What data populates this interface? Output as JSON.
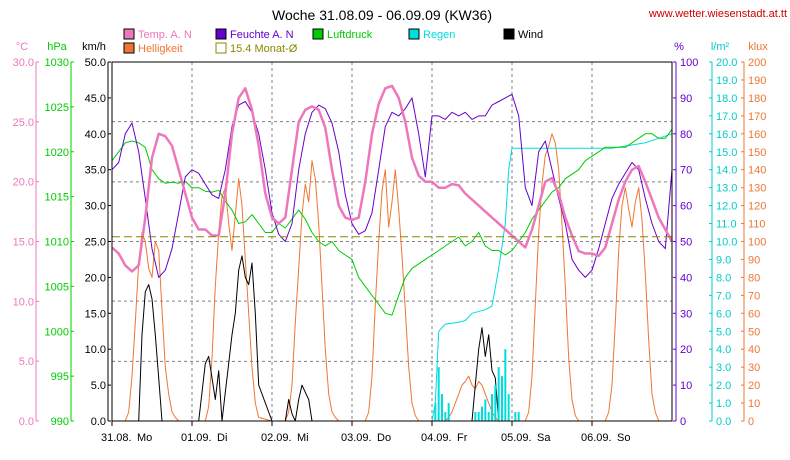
{
  "chart_data": {
    "type": "line",
    "title": "Woche 31.08.09 - 06.09.09 (KW36)",
    "source": "www.wetter.wiesenstadt.at.tt",
    "colors": {
      "temp": "#ee77bb",
      "humidity": "#6600cc",
      "pressure": "#00cc00",
      "rain": "#00dddd",
      "wind": "#000000",
      "brightness": "#ee7733",
      "monthavg": "#888800",
      "grid": "#808080"
    },
    "legend": [
      {
        "key": "temp",
        "label": "Temp. A. N",
        "color": "#ee77bb"
      },
      {
        "key": "humidity",
        "label": "Feuchte A. N",
        "color": "#6600cc"
      },
      {
        "key": "pressure",
        "label": "Luftdruck",
        "color": "#00cc00"
      },
      {
        "key": "rain",
        "label": "Regen",
        "color": "#00dddd"
      },
      {
        "key": "wind",
        "label": "Wind",
        "color": "#000000"
      },
      {
        "key": "brightness",
        "label": "Helligkeit",
        "color": "#ee7733"
      },
      {
        "key": "monthavg",
        "label": "15.4 Monat-Ø",
        "color": "#888800"
      }
    ],
    "axes_left": [
      {
        "key": "temp",
        "unit": "°C",
        "color": "#ee77bb",
        "min": 0,
        "max": 30,
        "ticks": [
          "0.0",
          "5.0",
          "10.0",
          "15.0",
          "20.0",
          "25.0",
          "30.0"
        ]
      },
      {
        "key": "pressure",
        "unit": "hPa",
        "color": "#00cc00",
        "min": 990,
        "max": 1030,
        "ticks": [
          "990",
          "995",
          "1000",
          "1005",
          "1010",
          "1015",
          "1020",
          "1025",
          "1030"
        ]
      },
      {
        "key": "wind",
        "unit": "km/h",
        "color": "#000000",
        "min": 0,
        "max": 50,
        "ticks": [
          "0.0",
          "5.0",
          "10.0",
          "15.0",
          "20.0",
          "25.0",
          "30.0",
          "35.0",
          "40.0",
          "45.0",
          "50.0"
        ]
      }
    ],
    "axes_right": [
      {
        "key": "humidity",
        "unit": "%",
        "color": "#6600cc",
        "min": 0,
        "max": 100,
        "ticks": [
          "0",
          "10",
          "20",
          "30",
          "40",
          "50",
          "60",
          "70",
          "80",
          "90",
          "100"
        ]
      },
      {
        "key": "rain",
        "unit": "l/m²",
        "color": "#00cccc",
        "min": 0,
        "max": 20,
        "ticks": [
          "0.0",
          "1.0",
          "2.0",
          "3.0",
          "4.0",
          "5.0",
          "6.0",
          "7.0",
          "8.0",
          "9.0",
          "10.0",
          "11.0",
          "12.0",
          "13.0",
          "14.0",
          "15.0",
          "16.0",
          "17.0",
          "18.0",
          "19.0",
          "20.0"
        ]
      },
      {
        "key": "brightness",
        "unit": "klux",
        "color": "#ee7733",
        "min": 0,
        "max": 200,
        "ticks": [
          "0",
          "10",
          "20",
          "30",
          "40",
          "50",
          "60",
          "70",
          "80",
          "90",
          "100",
          "110",
          "120",
          "130",
          "140",
          "150",
          "160",
          "170",
          "180",
          "190",
          "200"
        ]
      }
    ],
    "x_range_hours": [
      0,
      168
    ],
    "x_ticks": [
      {
        "hour": 0,
        "date": "31.08.",
        "day": "Mo"
      },
      {
        "hour": 24,
        "date": "01.09.",
        "day": "Di"
      },
      {
        "hour": 48,
        "date": "02.09.",
        "day": "Mi"
      },
      {
        "hour": 72,
        "date": "03.09.",
        "day": "Do"
      },
      {
        "hour": 96,
        "date": "04.09.",
        "day": "Fr"
      },
      {
        "hour": 120,
        "date": "05.09.",
        "day": "Sa"
      },
      {
        "hour": 144,
        "date": "06.09.",
        "day": "So"
      }
    ],
    "grid": true,
    "grid_y_wind": [
      8.3,
      16.7,
      25,
      33.3,
      41.7
    ],
    "month_avg_temp": 15.4,
    "series": {
      "brightness": {
        "x": [
          0,
          4,
          5,
          6,
          7,
          8,
          9,
          10,
          11,
          12,
          13,
          14,
          15,
          16,
          17,
          18,
          19,
          20,
          24,
          28,
          29,
          30,
          31,
          32,
          33,
          34,
          35,
          36,
          37,
          38,
          39,
          40,
          41,
          42,
          43,
          44,
          48,
          52,
          53,
          54,
          55,
          56,
          57,
          58,
          59,
          60,
          61,
          62,
          63,
          64,
          65,
          66,
          67,
          68,
          72,
          76,
          77,
          78,
          79,
          80,
          81,
          82,
          83,
          84,
          85,
          86,
          87,
          88,
          89,
          90,
          91,
          92,
          96,
          100,
          101,
          102,
          103,
          104,
          105,
          106,
          107,
          108,
          109,
          110,
          111,
          112,
          113,
          114,
          115,
          116,
          120,
          124,
          125,
          126,
          127,
          128,
          129,
          130,
          131,
          132,
          133,
          134,
          135,
          136,
          137,
          138,
          139,
          140,
          144,
          148,
          149,
          150,
          151,
          152,
          153,
          154,
          155,
          156,
          157,
          158,
          159,
          160,
          161,
          162,
          163,
          164,
          168
        ],
        "y": [
          0,
          0,
          5,
          25,
          55,
          88,
          105,
          100,
          85,
          80,
          100,
          95,
          62,
          30,
          15,
          5,
          2,
          0,
          0,
          0,
          8,
          35,
          75,
          105,
          125,
          130,
          110,
          95,
          115,
          135,
          120,
          90,
          60,
          30,
          10,
          2,
          0,
          0,
          5,
          20,
          55,
          85,
          115,
          132,
          122,
          145,
          135,
          110,
          75,
          40,
          15,
          5,
          2,
          0,
          0,
          0,
          5,
          25,
          65,
          100,
          128,
          140,
          108,
          122,
          140,
          118,
          92,
          62,
          30,
          10,
          3,
          0,
          0,
          0,
          2,
          5,
          10,
          15,
          20,
          22,
          25,
          20,
          18,
          22,
          20,
          15,
          10,
          5,
          2,
          0,
          0,
          0,
          5,
          25,
          65,
          105,
          132,
          148,
          153,
          160,
          155,
          140,
          110,
          75,
          35,
          12,
          3,
          0,
          0,
          0,
          5,
          20,
          55,
          95,
          120,
          130,
          118,
          108,
          122,
          130,
          112,
          82,
          45,
          15,
          5,
          0,
          0
        ]
      },
      "wind": {
        "x": [
          0,
          4,
          8,
          9,
          10,
          11,
          12,
          13,
          14,
          15,
          16,
          17,
          18,
          24,
          26,
          27,
          28,
          29,
          30,
          31,
          32,
          33,
          34,
          35,
          36,
          37,
          38,
          39,
          40,
          41,
          42,
          43,
          44,
          48,
          51,
          52,
          53,
          54,
          55,
          56,
          57,
          58,
          59,
          60,
          61,
          62,
          63,
          64,
          72,
          96,
          100,
          108,
          109,
          110,
          111,
          112,
          113,
          114,
          115,
          116,
          117,
          118,
          119,
          120,
          121,
          124,
          132,
          144,
          168
        ],
        "y": [
          0,
          0,
          0,
          12,
          18,
          19,
          17,
          12,
          6,
          0,
          0,
          0,
          0,
          0,
          0,
          4,
          8,
          9,
          6,
          3,
          7,
          0,
          4,
          8,
          12,
          15,
          21,
          23,
          20,
          19,
          22,
          15,
          5,
          0,
          0,
          0,
          3,
          1,
          0,
          3,
          5,
          4,
          3,
          0,
          0,
          0,
          0,
          0,
          0,
          0,
          0,
          0,
          5,
          10,
          13,
          9,
          12,
          7,
          6,
          0,
          0,
          0,
          0,
          0,
          0,
          0,
          0,
          0,
          0
        ]
      },
      "temp": {
        "x": [
          0,
          2,
          4,
          6,
          8,
          10,
          12,
          14,
          16,
          18,
          20,
          22,
          24,
          26,
          28,
          30,
          32,
          34,
          36,
          38,
          40,
          42,
          44,
          46,
          48,
          50,
          52,
          54,
          56,
          58,
          60,
          62,
          64,
          66,
          68,
          70,
          72,
          74,
          76,
          78,
          80,
          82,
          84,
          86,
          88,
          90,
          92,
          94,
          96,
          98,
          100,
          102,
          104,
          106,
          108,
          110,
          112,
          114,
          116,
          118,
          120,
          122,
          124,
          126,
          128,
          130,
          132,
          134,
          136,
          138,
          140,
          142,
          144,
          146,
          148,
          150,
          152,
          154,
          156,
          158,
          160,
          162,
          164,
          166,
          168
        ],
        "y": [
          14.5,
          14,
          13,
          12.5,
          13,
          17,
          22,
          24,
          23.8,
          23,
          21,
          19,
          17,
          16,
          16,
          15.5,
          15.5,
          19,
          24,
          27,
          27.8,
          26,
          23,
          19,
          17,
          16.5,
          17,
          21,
          25,
          26,
          26.3,
          26,
          24.5,
          21,
          18,
          17,
          16.8,
          17,
          20,
          24,
          26.5,
          27.8,
          28,
          27,
          25,
          22,
          20.5,
          20,
          20,
          19.5,
          19.5,
          19.8,
          19.7,
          19,
          18.5,
          18,
          17.5,
          17,
          16.5,
          16,
          15.5,
          15,
          14.5,
          16,
          18,
          20,
          20.3,
          19,
          17,
          15.5,
          14.2,
          14,
          14,
          13.8,
          14.5,
          16.5,
          18.5,
          20,
          21,
          21.3,
          20,
          18.5,
          17,
          16,
          15
        ]
      },
      "humidity": {
        "x": [
          0,
          2,
          4,
          6,
          8,
          10,
          12,
          14,
          16,
          18,
          20,
          22,
          24,
          26,
          28,
          30,
          32,
          34,
          36,
          38,
          40,
          42,
          44,
          46,
          48,
          50,
          52,
          54,
          56,
          58,
          60,
          62,
          64,
          66,
          68,
          70,
          72,
          74,
          76,
          78,
          80,
          82,
          84,
          86,
          88,
          90,
          92,
          94,
          96,
          98,
          100,
          102,
          104,
          106,
          108,
          110,
          112,
          114,
          116,
          118,
          120,
          122,
          124,
          126,
          128,
          130,
          132,
          134,
          136,
          138,
          140,
          142,
          144,
          146,
          148,
          150,
          152,
          154,
          156,
          158,
          160,
          162,
          164,
          166,
          168
        ],
        "y": [
          70,
          72,
          80,
          83,
          75,
          62,
          48,
          40,
          42,
          48,
          58,
          68,
          70,
          69,
          66,
          63,
          62,
          70,
          82,
          88,
          89,
          86,
          80,
          70,
          58,
          52,
          50,
          55,
          70,
          80,
          86,
          88,
          87,
          83,
          75,
          63,
          55,
          52,
          53,
          58,
          70,
          82,
          86,
          85,
          87,
          90,
          80,
          68,
          85,
          85,
          84,
          86,
          85,
          86,
          84,
          85,
          85,
          88,
          89,
          90,
          91,
          85,
          65,
          60,
          75,
          78,
          70,
          62,
          55,
          45,
          42,
          40,
          42,
          48,
          55,
          62,
          66,
          69,
          72,
          70,
          62,
          55,
          50,
          48,
          70
        ]
      },
      "pressure": {
        "x": [
          0,
          2,
          4,
          6,
          8,
          10,
          12,
          14,
          16,
          18,
          20,
          22,
          24,
          26,
          28,
          30,
          32,
          34,
          36,
          38,
          40,
          42,
          44,
          46,
          48,
          50,
          52,
          54,
          56,
          58,
          60,
          62,
          64,
          66,
          68,
          70,
          72,
          74,
          76,
          78,
          80,
          82,
          84,
          86,
          88,
          90,
          92,
          94,
          96,
          98,
          100,
          102,
          104,
          106,
          108,
          110,
          112,
          114,
          116,
          118,
          120,
          122,
          124,
          126,
          128,
          130,
          132,
          134,
          136,
          138,
          140,
          142,
          144,
          146,
          148,
          150,
          152,
          154,
          156,
          158,
          160,
          162,
          164,
          166,
          168
        ],
        "y": [
          1019,
          1020,
          1021,
          1021.2,
          1021,
          1020.5,
          1018,
          1017,
          1016.5,
          1016.6,
          1016.5,
          1016.7,
          1016,
          1016,
          1015.6,
          1015.5,
          1015.7,
          1014.5,
          1013.5,
          1012,
          1012.2,
          1013,
          1012,
          1011,
          1011,
          1012,
          1011.5,
          1012.5,
          1013.5,
          1012.5,
          1011,
          1010,
          1009.5,
          1010,
          1009,
          1008.5,
          1008,
          1006,
          1005,
          1004,
          1003,
          1002,
          1001.8,
          1004,
          1006,
          1007,
          1007.5,
          1008,
          1008.5,
          1009,
          1009.5,
          1010,
          1010.5,
          1009.5,
          1010,
          1011,
          1009.5,
          1009,
          1009,
          1008.5,
          1009,
          1010,
          1011,
          1012.5,
          1013.5,
          1014.5,
          1015.5,
          1016,
          1017,
          1017.5,
          1018,
          1019,
          1019.5,
          1020,
          1020.5,
          1020.5,
          1020.5,
          1020.5,
          1021,
          1021.5,
          1022,
          1022,
          1021.5,
          1021.5,
          1022.5
        ]
      },
      "rain_cumulative": {
        "x": [
          0,
          96,
          97,
          98,
          100,
          104,
          106,
          108,
          112,
          114,
          116,
          118,
          119,
          120,
          121,
          122,
          124,
          128,
          140,
          150,
          160,
          168
        ],
        "y": [
          0,
          0,
          1,
          5,
          5.4,
          5.5,
          5.6,
          6,
          6.2,
          6.4,
          8.5,
          11,
          14,
          15.2,
          15.2,
          15.2,
          15.2,
          15.2,
          15.2,
          15.2,
          15.5,
          16
        ]
      },
      "rain_hourly": {
        "x": [
          97,
          98,
          99,
          100,
          101,
          109,
          110,
          111,
          112,
          113,
          114,
          115,
          116,
          117,
          118,
          119,
          121,
          122
        ],
        "y": [
          1.0,
          3.0,
          1.5,
          0.5,
          1.0,
          0.5,
          0.5,
          0.8,
          1.2,
          0.5,
          1.5,
          2.0,
          3.0,
          2.5,
          4.0,
          1.5,
          0.5,
          0.5
        ]
      }
    }
  }
}
